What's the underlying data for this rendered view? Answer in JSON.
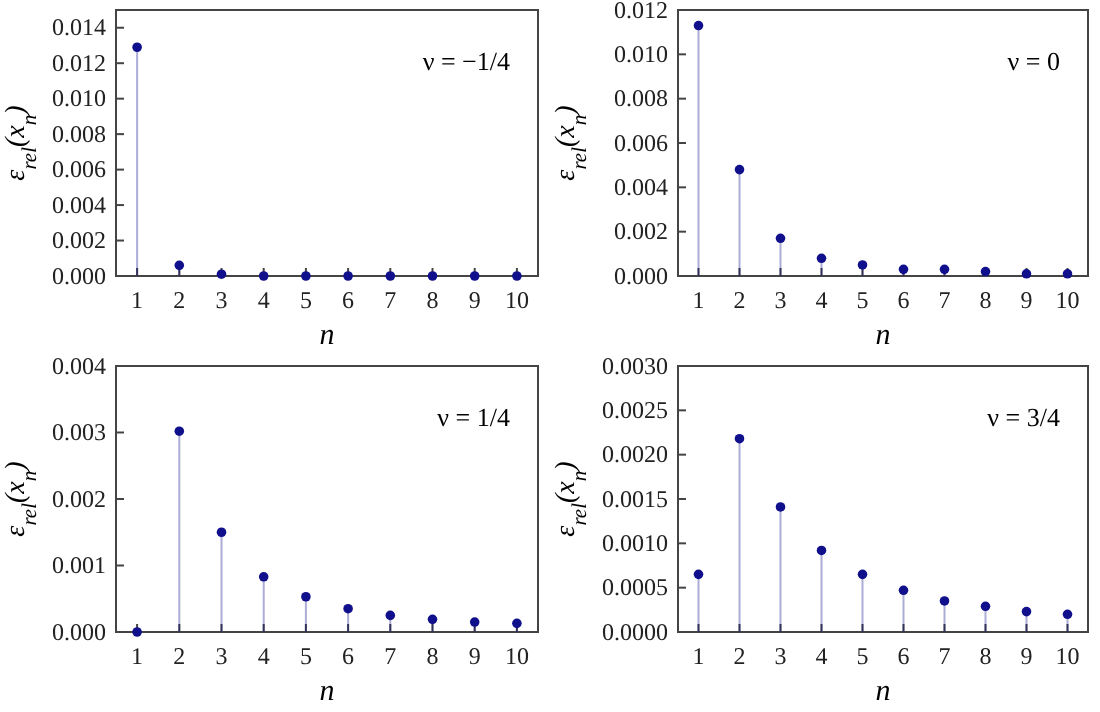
{
  "chart_data": [
    {
      "type": "lollipop",
      "xlabel": "n",
      "ylabel": "ε$_{rel}$(x$_{n}$)",
      "annotations": [
        "ν = −1/4"
      ],
      "marker": "circle",
      "color": "#10108c",
      "x": [
        1,
        2,
        3,
        4,
        5,
        6,
        7,
        8,
        9,
        10
      ],
      "values": [
        0.0129,
        0.0006,
        0.0001,
        0,
        0,
        0,
        0,
        0,
        0,
        0
      ],
      "xlim": [
        0.5,
        10.5
      ],
      "xticks": [
        1,
        2,
        3,
        4,
        5,
        6,
        7,
        8,
        9,
        10
      ],
      "ylim": [
        0,
        0.015
      ],
      "yticks": [
        {
          "value": 0,
          "label": "0.000"
        },
        {
          "value": 0.002,
          "label": "0.002"
        },
        {
          "value": 0.004,
          "label": "0.004"
        },
        {
          "value": 0.006,
          "label": "0.006"
        },
        {
          "value": 0.008,
          "label": "0.008"
        },
        {
          "value": 0.01,
          "label": "0.010"
        },
        {
          "value": 0.012,
          "label": "0.012"
        },
        {
          "value": 0.014,
          "label": "0.014"
        }
      ]
    },
    {
      "type": "lollipop",
      "xlabel": "n",
      "ylabel": "ε$_{rel}$(x$_{n}$)",
      "annotations": [
        "ν = 0"
      ],
      "marker": "circle",
      "color": "#10108c",
      "x": [
        1,
        2,
        3,
        4,
        5,
        6,
        7,
        8,
        9,
        10
      ],
      "values": [
        0.0113,
        0.0048,
        0.0017,
        0.0008,
        0.0005,
        0.0003,
        0.0003,
        0.0002,
        0.0001,
        0.0001
      ],
      "xlim": [
        0.5,
        10.5
      ],
      "xticks": [
        1,
        2,
        3,
        4,
        5,
        6,
        7,
        8,
        9,
        10
      ],
      "ylim": [
        0,
        0.012
      ],
      "yticks": [
        {
          "value": 0,
          "label": "0.000"
        },
        {
          "value": 0.002,
          "label": "0.002"
        },
        {
          "value": 0.004,
          "label": "0.004"
        },
        {
          "value": 0.006,
          "label": "0.006"
        },
        {
          "value": 0.008,
          "label": "0.008"
        },
        {
          "value": 0.01,
          "label": "0.010"
        },
        {
          "value": 0.012,
          "label": "0.012"
        }
      ]
    },
    {
      "type": "lollipop",
      "xlabel": "n",
      "ylabel": "ε$_{rel}$(x$_{n}$)",
      "annotations": [
        "ν = 1/4"
      ],
      "marker": "circle",
      "color": "#10108c",
      "x": [
        1,
        2,
        3,
        4,
        5,
        6,
        7,
        8,
        9,
        10
      ],
      "values": [
        0,
        0.00302,
        0.0015,
        0.00083,
        0.00053,
        0.00035,
        0.00025,
        0.00019,
        0.00015,
        0.00013
      ],
      "xlim": [
        0.5,
        10.5
      ],
      "xticks": [
        1,
        2,
        3,
        4,
        5,
        6,
        7,
        8,
        9,
        10
      ],
      "ylim": [
        0,
        0.004
      ],
      "yticks": [
        {
          "value": 0,
          "label": "0.000"
        },
        {
          "value": 0.001,
          "label": "0.001"
        },
        {
          "value": 0.002,
          "label": "0.002"
        },
        {
          "value": 0.003,
          "label": "0.003"
        },
        {
          "value": 0.004,
          "label": "0.004"
        }
      ]
    },
    {
      "type": "lollipop",
      "xlabel": "n",
      "ylabel": "ε$_{rel}$(x$_{n}$)",
      "annotations": [
        "ν = 3/4"
      ],
      "marker": "circle",
      "color": "#10108c",
      "x": [
        1,
        2,
        3,
        4,
        5,
        6,
        7,
        8,
        9,
        10
      ],
      "values": [
        0.00065,
        0.00218,
        0.00141,
        0.00092,
        0.00065,
        0.00047,
        0.00035,
        0.00029,
        0.00023,
        0.0002
      ],
      "xlim": [
        0.5,
        10.5
      ],
      "xticks": [
        1,
        2,
        3,
        4,
        5,
        6,
        7,
        8,
        9,
        10
      ],
      "ylim": [
        0,
        0.003
      ],
      "yticks": [
        {
          "value": 0,
          "label": "0.0000"
        },
        {
          "value": 0.0005,
          "label": "0.0005"
        },
        {
          "value": 0.001,
          "label": "0.0010"
        },
        {
          "value": 0.0015,
          "label": "0.0015"
        },
        {
          "value": 0.002,
          "label": "0.0020"
        },
        {
          "value": 0.0025,
          "label": "0.0025"
        },
        {
          "value": 0.003,
          "label": "0.0030"
        }
      ]
    }
  ]
}
